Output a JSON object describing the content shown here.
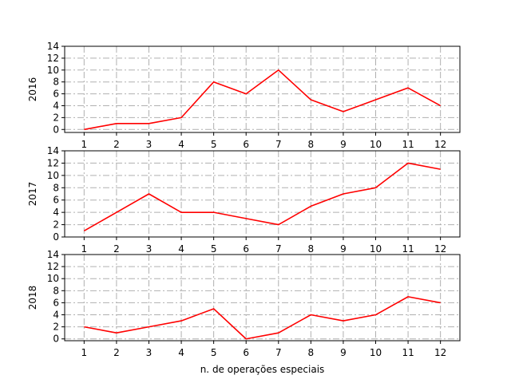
{
  "chart_data": [
    {
      "type": "line",
      "ylabel": "2016",
      "xlabel": "",
      "x": [
        1,
        2,
        3,
        4,
        5,
        6,
        7,
        8,
        9,
        10,
        11,
        12
      ],
      "values": [
        0,
        1,
        1,
        2,
        8,
        6,
        10,
        5,
        3,
        5,
        7,
        4
      ],
      "ylim": [
        -0.5,
        14
      ],
      "yticks": [
        0,
        2,
        4,
        6,
        8,
        10,
        12,
        14
      ],
      "xticks": [
        1,
        2,
        3,
        4,
        5,
        6,
        7,
        8,
        9,
        10,
        11,
        12
      ],
      "grid": true,
      "line_color": "#ff0000"
    },
    {
      "type": "line",
      "ylabel": "2017",
      "xlabel": "",
      "x": [
        1,
        2,
        3,
        4,
        5,
        6,
        7,
        8,
        9,
        10,
        11,
        12
      ],
      "values": [
        1,
        4,
        7,
        4,
        4,
        3,
        2,
        5,
        7,
        8,
        12,
        11
      ],
      "ylim": [
        0,
        14
      ],
      "yticks": [
        0,
        2,
        4,
        6,
        8,
        10,
        12,
        14
      ],
      "xticks": [
        1,
        2,
        3,
        4,
        5,
        6,
        7,
        8,
        9,
        10,
        11,
        12
      ],
      "grid": true,
      "line_color": "#ff0000"
    },
    {
      "type": "line",
      "ylabel": "2018",
      "xlabel": "n. de operações especiais",
      "x": [
        1,
        2,
        3,
        4,
        5,
        6,
        7,
        8,
        9,
        10,
        11,
        12
      ],
      "values": [
        2,
        1,
        2,
        3,
        5,
        0,
        1,
        4,
        3,
        4,
        7,
        6
      ],
      "ylim": [
        -0.3,
        14
      ],
      "yticks": [
        0,
        2,
        4,
        6,
        8,
        10,
        12,
        14
      ],
      "xticks": [
        1,
        2,
        3,
        4,
        5,
        6,
        7,
        8,
        9,
        10,
        11,
        12
      ],
      "grid": true,
      "line_color": "#ff0000"
    }
  ]
}
